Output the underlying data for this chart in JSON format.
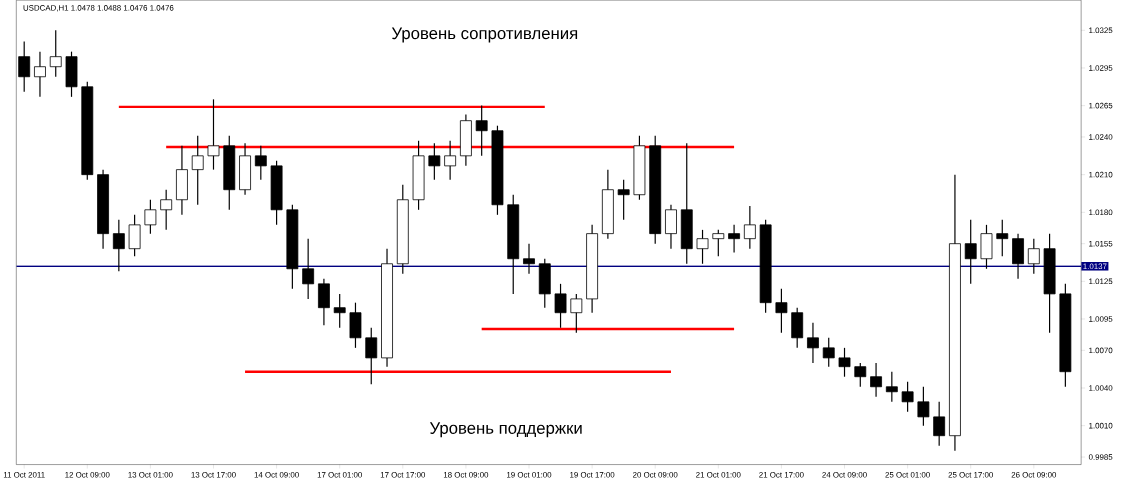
{
  "chart_data": {
    "type": "candlestick",
    "title": "USDCAD,H1  1.0478 1.0488 1.0476 1.0476",
    "annotations": [
      "Уровень сопротивления",
      "Уровень поддержки"
    ],
    "color": "#000000",
    "categories": [
      "11 Oct 2011",
      null,
      null,
      null,
      "12 Oct 09:00",
      null,
      null,
      null,
      "13 Oct 01:00",
      null,
      null,
      null,
      "13 Oct 17:00",
      null,
      null,
      null,
      "14 Oct 09:00",
      null,
      null,
      null,
      "17 Oct 01:00",
      null,
      null,
      null,
      "17 Oct 17:00",
      null,
      null,
      null,
      "18 Oct 09:00",
      null,
      null,
      null,
      "19 Oct 01:00",
      null,
      null,
      null,
      "19 Oct 17:00",
      null,
      null,
      null,
      "20 Oct 09:00",
      null,
      null,
      null,
      "21 Oct 01:00",
      null,
      null,
      null,
      "21 Oct 17:00",
      null,
      null,
      null,
      "24 Oct 09:00",
      null,
      null,
      null,
      "25 Oct 01:00",
      null,
      null,
      null,
      "25 Oct 17:00",
      null,
      null,
      null,
      "26 Oct 09:00",
      null,
      null
    ],
    "ohlc": [
      [
        1.0304,
        1.0316,
        1.0276,
        1.0288
      ],
      [
        1.0288,
        1.0308,
        1.0272,
        1.0296
      ],
      [
        1.0296,
        1.0325,
        1.0288,
        1.0304
      ],
      [
        1.0304,
        1.0308,
        1.0272,
        1.028
      ],
      [
        1.028,
        1.0284,
        1.0206,
        1.021
      ],
      [
        1.021,
        1.0214,
        1.0151,
        1.0163
      ],
      [
        1.0163,
        1.0174,
        1.0133,
        1.0151
      ],
      [
        1.0151,
        1.0178,
        1.0145,
        1.017
      ],
      [
        1.017,
        1.019,
        1.0163,
        1.0182
      ],
      [
        1.0182,
        1.0198,
        1.0166,
        1.019
      ],
      [
        1.019,
        1.0233,
        1.0178,
        1.0214
      ],
      [
        1.0214,
        1.0241,
        1.0186,
        1.0225
      ],
      [
        1.0225,
        1.027,
        1.0214,
        1.0233
      ],
      [
        1.0233,
        1.0241,
        1.0182,
        1.0198
      ],
      [
        1.0198,
        1.0235,
        1.0194,
        1.0225
      ],
      [
        1.0225,
        1.0233,
        1.0206,
        1.0217
      ],
      [
        1.0217,
        1.0221,
        1.017,
        1.0182
      ],
      [
        1.0182,
        1.0186,
        1.0119,
        1.0135
      ],
      [
        1.0135,
        1.0159,
        1.0111,
        1.0123
      ],
      [
        1.0123,
        1.0127,
        1.009,
        1.0104
      ],
      [
        1.0104,
        1.0115,
        1.0088,
        1.01
      ],
      [
        1.01,
        1.0108,
        1.0072,
        1.008
      ],
      [
        1.008,
        1.0088,
        1.0043,
        1.0064
      ],
      [
        1.0064,
        1.0151,
        1.0057,
        1.0139
      ],
      [
        1.0139,
        1.0202,
        1.0131,
        1.019
      ],
      [
        1.019,
        1.0237,
        1.0182,
        1.0225
      ],
      [
        1.0225,
        1.0235,
        1.0206,
        1.0217
      ],
      [
        1.0217,
        1.0237,
        1.0206,
        1.0225
      ],
      [
        1.0225,
        1.0258,
        1.0217,
        1.0253
      ],
      [
        1.0253,
        1.0265,
        1.0225,
        1.0245
      ],
      [
        1.0245,
        1.0249,
        1.0178,
        1.0186
      ],
      [
        1.0186,
        1.0194,
        1.0115,
        1.0143
      ],
      [
        1.0143,
        1.0155,
        1.0131,
        1.0139
      ],
      [
        1.0139,
        1.0143,
        1.0104,
        1.0115
      ],
      [
        1.0115,
        1.0123,
        1.0088,
        1.01
      ],
      [
        1.01,
        1.0115,
        1.0084,
        1.0111
      ],
      [
        1.0111,
        1.017,
        1.01,
        1.0163
      ],
      [
        1.0163,
        1.0214,
        1.0159,
        1.0198
      ],
      [
        1.0198,
        1.0206,
        1.0174,
        1.0194
      ],
      [
        1.0194,
        1.0241,
        1.019,
        1.0233
      ],
      [
        1.0233,
        1.0241,
        1.0155,
        1.0163
      ],
      [
        1.0163,
        1.0186,
        1.0151,
        1.0182
      ],
      [
        1.0182,
        1.0235,
        1.0139,
        1.0151
      ],
      [
        1.0151,
        1.0166,
        1.0139,
        1.0159
      ],
      [
        1.0159,
        1.0166,
        1.0145,
        1.0163
      ],
      [
        1.0163,
        1.017,
        1.0148,
        1.0159
      ],
      [
        1.0159,
        1.0185,
        1.0151,
        1.017
      ],
      [
        1.017,
        1.0174,
        1.01,
        1.0108
      ],
      [
        1.0108,
        1.0119,
        1.0084,
        1.01
      ],
      [
        1.01,
        1.0104,
        1.0072,
        1.008
      ],
      [
        1.008,
        1.0092,
        1.006,
        1.0072
      ],
      [
        1.0072,
        1.008,
        1.0057,
        1.0064
      ],
      [
        1.0064,
        1.0072,
        1.0049,
        1.0057
      ],
      [
        1.0057,
        1.006,
        1.0041,
        1.0049
      ],
      [
        1.0049,
        1.006,
        1.0033,
        1.0041
      ],
      [
        1.0041,
        1.0053,
        1.0029,
        1.0037
      ],
      [
        1.0037,
        1.0045,
        1.0021,
        1.0029
      ],
      [
        1.0029,
        1.0041,
        1.001,
        1.0017
      ],
      [
        1.0017,
        1.0029,
        0.9994,
        1.0002
      ],
      [
        1.0002,
        1.021,
        0.999,
        1.0155
      ],
      [
        1.0155,
        1.0174,
        1.0123,
        1.0143
      ],
      [
        1.0143,
        1.017,
        1.0135,
        1.0163
      ],
      [
        1.0163,
        1.0174,
        1.0145,
        1.0159
      ],
      [
        1.0159,
        1.0163,
        1.0127,
        1.0139
      ],
      [
        1.0139,
        1.0159,
        1.0131,
        1.0151
      ],
      [
        1.0151,
        1.0163,
        1.0084,
        1.0115
      ],
      [
        1.0115,
        1.0123,
        1.0041,
        1.0053
      ]
    ],
    "series": [
      {
        "type": "line",
        "color": "#ff0000",
        "values": [
          null,
          null,
          null,
          null,
          null,
          null,
          1.0264,
          null,
          null,
          null,
          null,
          null,
          null,
          null,
          null,
          null,
          null,
          null,
          null,
          null,
          null,
          null,
          null,
          null,
          null,
          null,
          null,
          null,
          null,
          null,
          null,
          null,
          null,
          1.0264,
          null,
          null,
          null,
          null,
          null,
          null,
          null,
          null,
          null,
          null,
          null,
          null,
          null,
          null,
          null,
          null,
          null,
          null,
          null,
          null,
          null,
          null,
          null,
          null,
          null,
          null,
          null,
          null,
          null,
          null,
          null,
          null,
          null
        ]
      },
      {
        "type": "line",
        "color": "#ff0000",
        "values": [
          null,
          null,
          null,
          null,
          null,
          null,
          null,
          null,
          null,
          1.0232,
          null,
          null,
          null,
          null,
          null,
          null,
          null,
          null,
          null,
          null,
          null,
          null,
          null,
          null,
          null,
          null,
          null,
          null,
          null,
          null,
          null,
          null,
          null,
          null,
          null,
          null,
          null,
          null,
          null,
          null,
          null,
          null,
          null,
          null,
          null,
          1.0232,
          null,
          null,
          null,
          null,
          null,
          null,
          null,
          null,
          null,
          null,
          null,
          null,
          null,
          null,
          null,
          null,
          null,
          null,
          null,
          null,
          null
        ]
      },
      {
        "type": "line",
        "color": "#ff0000",
        "values": [
          null,
          null,
          null,
          null,
          null,
          null,
          null,
          null,
          null,
          null,
          null,
          null,
          null,
          null,
          null,
          null,
          null,
          null,
          null,
          null,
          null,
          null,
          null,
          null,
          null,
          null,
          null,
          null,
          null,
          1.0087,
          null,
          null,
          null,
          null,
          null,
          null,
          null,
          null,
          null,
          null,
          null,
          null,
          null,
          null,
          null,
          1.0087,
          null,
          null,
          null,
          null,
          null,
          null,
          null,
          null,
          null,
          null,
          null,
          null,
          null,
          null,
          null,
          null,
          null,
          null,
          null,
          null,
          null
        ]
      },
      {
        "type": "line",
        "color": "#ff0000",
        "values": [
          null,
          null,
          null,
          null,
          null,
          null,
          null,
          null,
          null,
          null,
          null,
          null,
          null,
          null,
          1.0053,
          null,
          null,
          null,
          null,
          null,
          null,
          null,
          null,
          null,
          null,
          null,
          null,
          null,
          null,
          null,
          null,
          null,
          null,
          null,
          null,
          null,
          null,
          null,
          null,
          null,
          null,
          1.0053,
          null,
          null,
          null,
          null,
          null,
          null,
          null,
          null,
          null,
          null,
          null,
          null,
          null,
          null,
          null,
          null,
          null,
          null,
          null,
          null,
          null,
          null,
          null,
          null,
          null
        ]
      }
    ],
    "ref_lines": [
      {
        "axis": "y",
        "value": 1.0137,
        "label": "1.0137",
        "color": "#000080"
      }
    ],
    "ylim": [
      0.9979,
      1.0349
    ],
    "yticks": [
      1.0325,
      1.0295,
      1.0265,
      {
        "value": 1.024,
        "label": "1.0240"
      },
      {
        "value": 1.021,
        "label": "1.0210"
      },
      {
        "value": 1.018,
        "label": "1.0180"
      },
      1.0155,
      1.0125,
      1.0095,
      {
        "value": 1.007,
        "label": "1.0070"
      },
      {
        "value": 1.004,
        "label": "1.0040"
      },
      {
        "value": 1.001,
        "label": "1.0010"
      },
      0.9985
    ]
  }
}
